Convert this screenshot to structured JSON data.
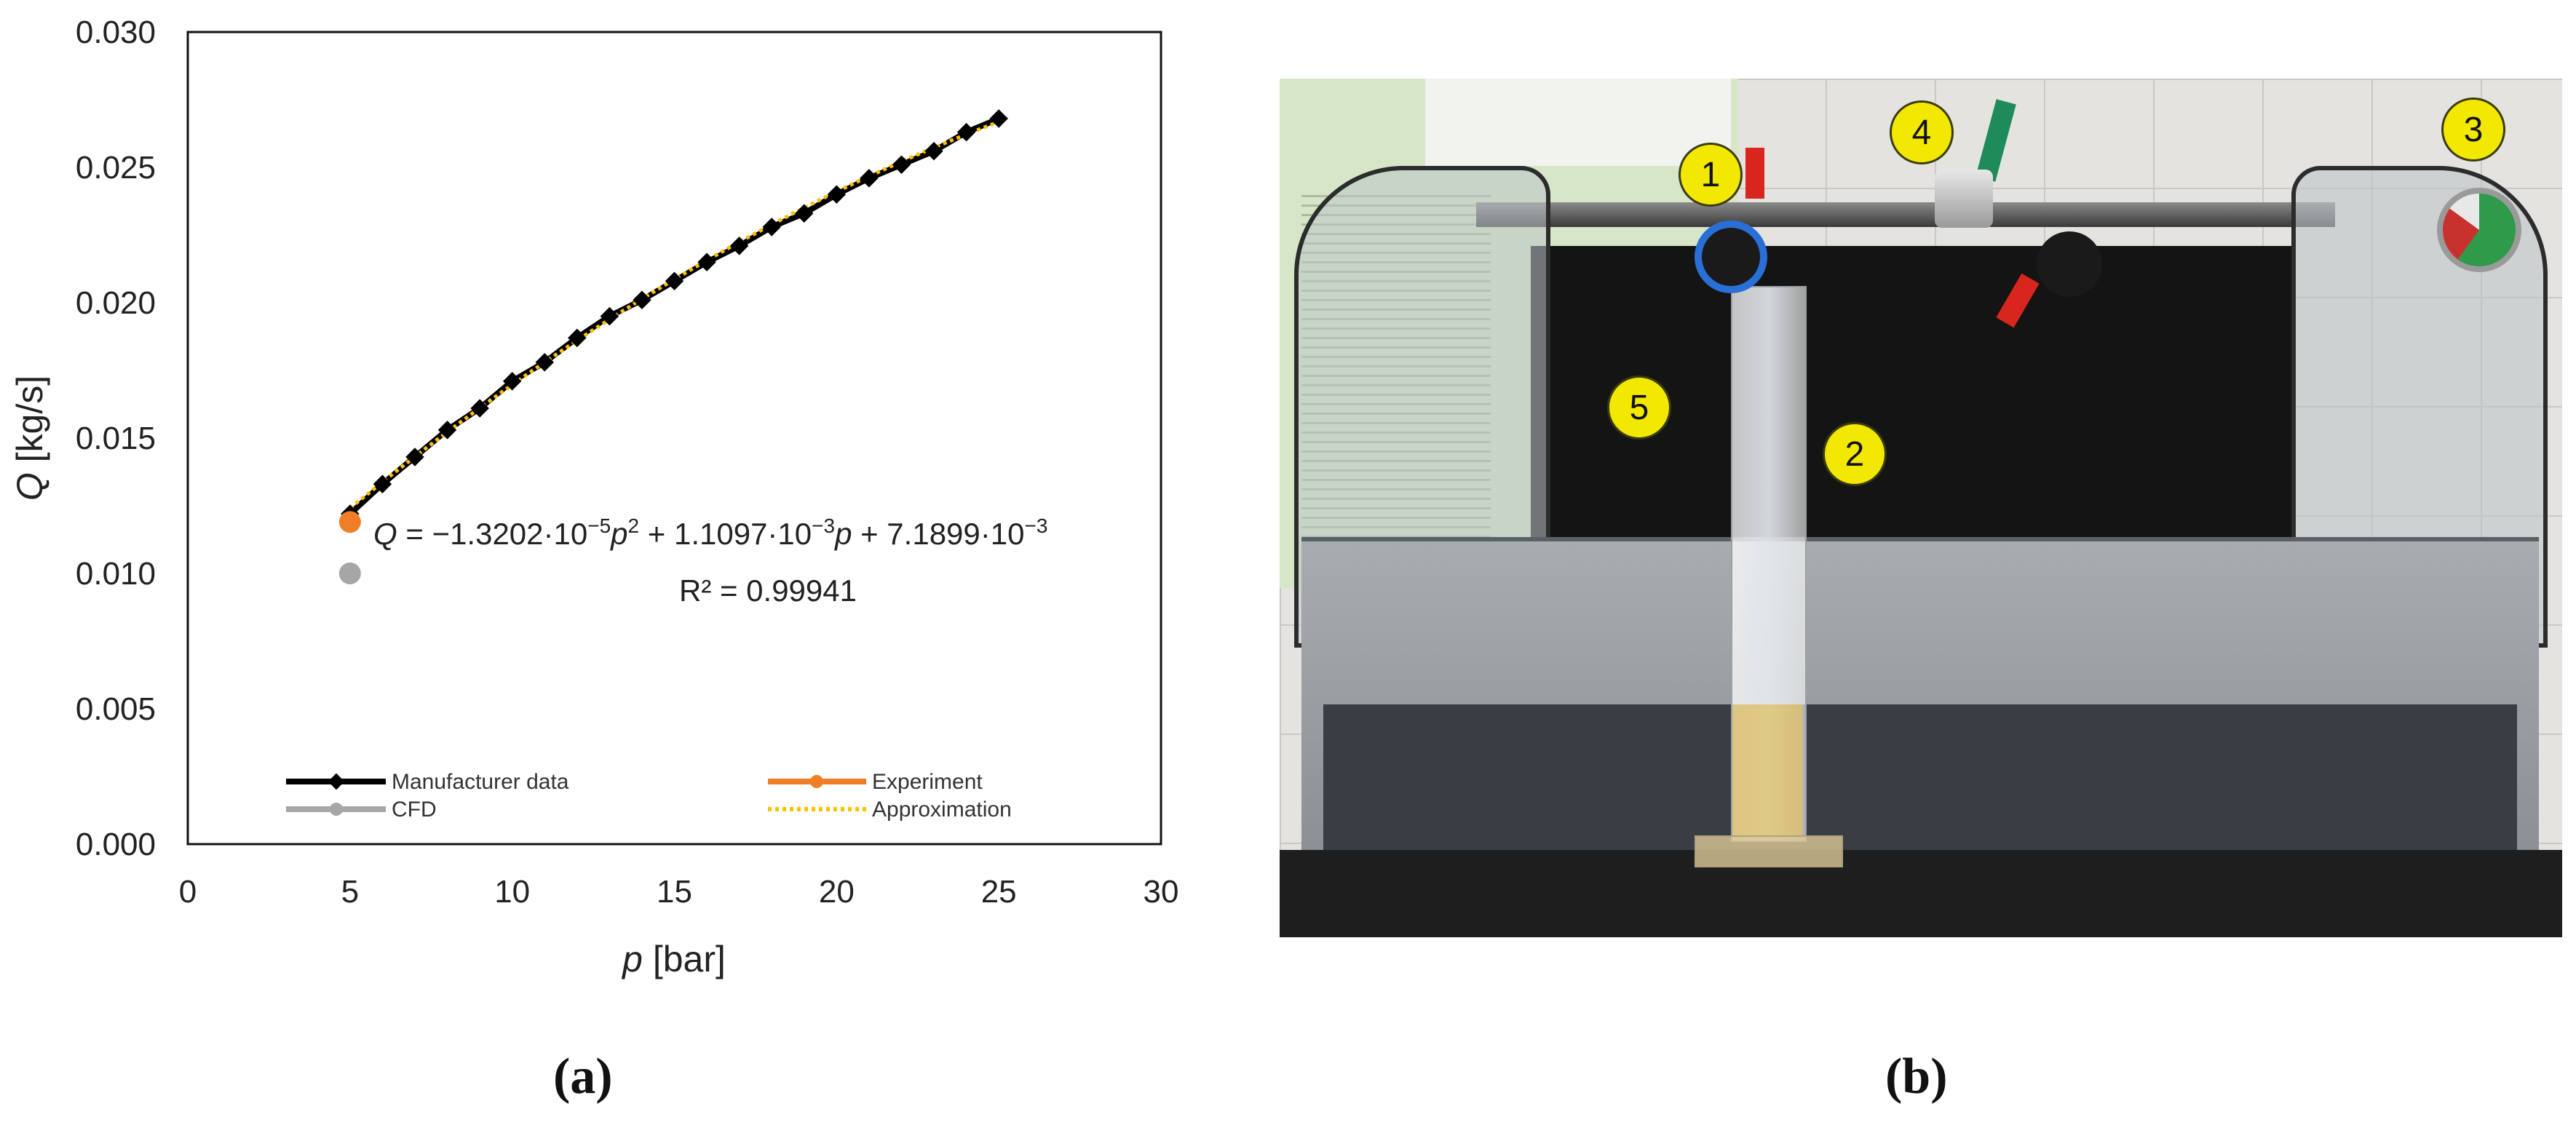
{
  "chart_data": {
    "type": "line",
    "x_axis": {
      "title_symbol": "p",
      "title_unit": " [bar]",
      "range": [
        0,
        30
      ],
      "ticks": [
        "0",
        "5",
        "10",
        "15",
        "20",
        "25",
        "30"
      ]
    },
    "y_axis": {
      "title_symbol": "Q",
      "title_unit": " [kg/s]",
      "range": [
        0,
        0.03
      ],
      "ticks": [
        "0.000",
        "0.005",
        "0.010",
        "0.015",
        "0.020",
        "0.025",
        "0.030"
      ]
    },
    "grid": false,
    "legend_position": "bottom-inside",
    "series": [
      {
        "name": "Manufacturer data",
        "color": "#000000",
        "marker": "diamond",
        "x": [
          5,
          6,
          7,
          8,
          9,
          10,
          11,
          12,
          13,
          14,
          15,
          16,
          17,
          18,
          19,
          20,
          21,
          22,
          23,
          24,
          25
        ],
        "y": [
          0.0122,
          0.0133,
          0.0143,
          0.0153,
          0.0161,
          0.0171,
          0.0178,
          0.0187,
          0.0195,
          0.0201,
          0.0208,
          0.0215,
          0.0221,
          0.0228,
          0.0233,
          0.024,
          0.0246,
          0.0251,
          0.0256,
          0.0263,
          0.0268
        ]
      },
      {
        "name": "Experiment",
        "color": "#f07e26",
        "marker": "circle",
        "x": [
          5
        ],
        "y": [
          0.0119
        ]
      },
      {
        "name": "CFD",
        "color": "#a6a6a6",
        "marker": "circle",
        "x": [
          5
        ],
        "y": [
          0.01
        ]
      },
      {
        "name": "Approximation",
        "color": "#ffc000",
        "style": "dotted",
        "coefficients": {
          "a": -1.3202e-05,
          "b": 0.0011097,
          "c": 0.0071899
        },
        "x_range": [
          5,
          25
        ]
      }
    ],
    "annotation": {
      "equation_q": "Q",
      "equation_rest": " = −1.3202·10",
      "exp1": "−5",
      "p1": "p",
      "sq": "2",
      "part2": " + 1.1097·10",
      "exp2": "−3",
      "p2": "p",
      "part3": " + 7.1899·10",
      "exp3": "−3",
      "r2": "R² = 0.99941"
    }
  },
  "photo": {
    "markers": [
      "1",
      "2",
      "3",
      "4",
      "5"
    ],
    "marker_color": "#f3e900"
  },
  "panel_labels": {
    "a": "(a)",
    "b": "(b)"
  }
}
